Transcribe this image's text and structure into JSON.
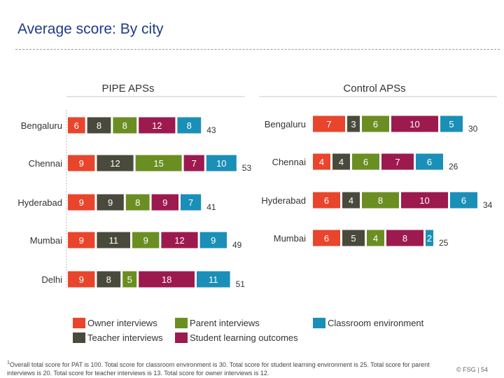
{
  "page": {
    "title": "Average score: By city",
    "footnote_mark": "1",
    "footnote": "Overall total score for PAT is 100. Total score for classroom environment is 30. Total score for student learning environment is 25. Total score for parent interviews is 20. Total score for teacher interviews is 13. Total score for owner interviews is 12.",
    "footer": "© FSG | 54"
  },
  "colors": {
    "owner": "#e8452c",
    "parent": "#6b8e23",
    "classroom": "#1a8fb8",
    "teacher": "#4a4a3c",
    "student": "#9c1a4e"
  },
  "legend": [
    {
      "key": "owner",
      "label": "Owner interviews"
    },
    {
      "key": "teacher",
      "label": "Teacher interviews"
    },
    {
      "key": "parent",
      "label": "Parent interviews"
    },
    {
      "key": "student",
      "label": "Student learning outcomes"
    },
    {
      "key": "classroom",
      "label": "Classroom environment"
    }
  ],
  "chart_data": [
    {
      "type": "bar",
      "orientation": "horizontal-stacked",
      "title": "PIPE APSs",
      "categories": [
        "Bengaluru",
        "Chennai",
        "Hyderabad",
        "Mumbai",
        "Delhi"
      ],
      "series": [
        {
          "name": "Owner interviews",
          "key": "owner",
          "values": [
            6,
            9,
            9,
            9,
            9
          ]
        },
        {
          "name": "Teacher interviews",
          "key": "teacher",
          "values": [
            8,
            12,
            9,
            11,
            8
          ]
        },
        {
          "name": "Parent interviews",
          "key": "parent",
          "values": [
            8,
            15,
            8,
            9,
            5
          ]
        },
        {
          "name": "Student learning outcomes",
          "key": "student",
          "values": [
            12,
            7,
            9,
            12,
            18
          ]
        },
        {
          "name": "Classroom environment",
          "key": "classroom",
          "values": [
            8,
            10,
            7,
            9,
            11
          ]
        }
      ],
      "totals": [
        43,
        53,
        41,
        49,
        51
      ]
    },
    {
      "type": "bar",
      "orientation": "horizontal-stacked",
      "title": "Control APSs",
      "categories": [
        "Bengaluru",
        "Chennai",
        "Hyderabad",
        "Mumbai"
      ],
      "series": [
        {
          "name": "Owner interviews",
          "key": "owner",
          "values": [
            7,
            4,
            6,
            6
          ]
        },
        {
          "name": "Teacher interviews",
          "key": "teacher",
          "values": [
            3,
            4,
            4,
            5
          ]
        },
        {
          "name": "Parent interviews",
          "key": "parent",
          "values": [
            6,
            6,
            8,
            4
          ]
        },
        {
          "name": "Student learning outcomes",
          "key": "student",
          "values": [
            10,
            7,
            10,
            8
          ]
        },
        {
          "name": "Classroom environment",
          "key": "classroom",
          "values": [
            5,
            6,
            6,
            2
          ]
        }
      ],
      "totals": [
        30,
        26,
        34,
        25
      ]
    }
  ]
}
